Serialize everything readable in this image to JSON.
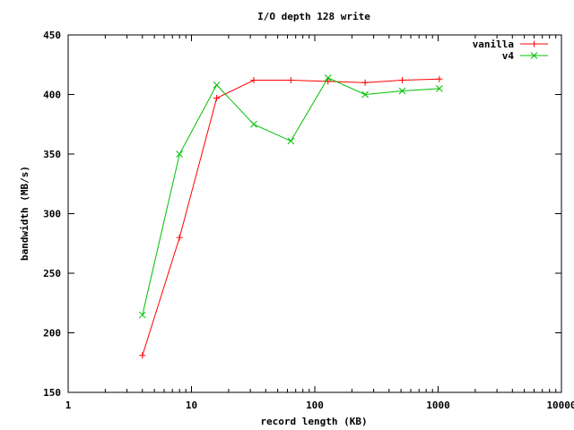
{
  "chart_data": {
    "type": "line",
    "title": "I/O depth 128 write",
    "xlabel": "record length (KB)",
    "ylabel": "bandwidth (MB/s)",
    "xscale": "log",
    "xlim": [
      1,
      10000
    ],
    "ylim": [
      150,
      450
    ],
    "xticks": [
      1,
      10,
      100,
      1000,
      10000
    ],
    "xtick_labels": [
      "1",
      "10",
      "100",
      "1000",
      "10000"
    ],
    "yticks": [
      150,
      200,
      250,
      300,
      350,
      400,
      450
    ],
    "ytick_labels": [
      "150",
      "200",
      "250",
      "300",
      "350",
      "400",
      "450"
    ],
    "grid": false,
    "legend_position": "top-right",
    "series": [
      {
        "name": "vanilla",
        "color": "#ff0000",
        "marker": "plus",
        "x": [
          4,
          8,
          16,
          32,
          64,
          128,
          256,
          512,
          1024
        ],
        "y": [
          181,
          280,
          397,
          412,
          412,
          411,
          410,
          412,
          413
        ]
      },
      {
        "name": "v4",
        "color": "#00c000",
        "marker": "cross",
        "x": [
          4,
          8,
          16,
          32,
          64,
          128,
          256,
          512,
          1024
        ],
        "y": [
          215,
          350,
          408,
          375,
          361,
          414,
          400,
          403,
          405
        ]
      }
    ]
  }
}
